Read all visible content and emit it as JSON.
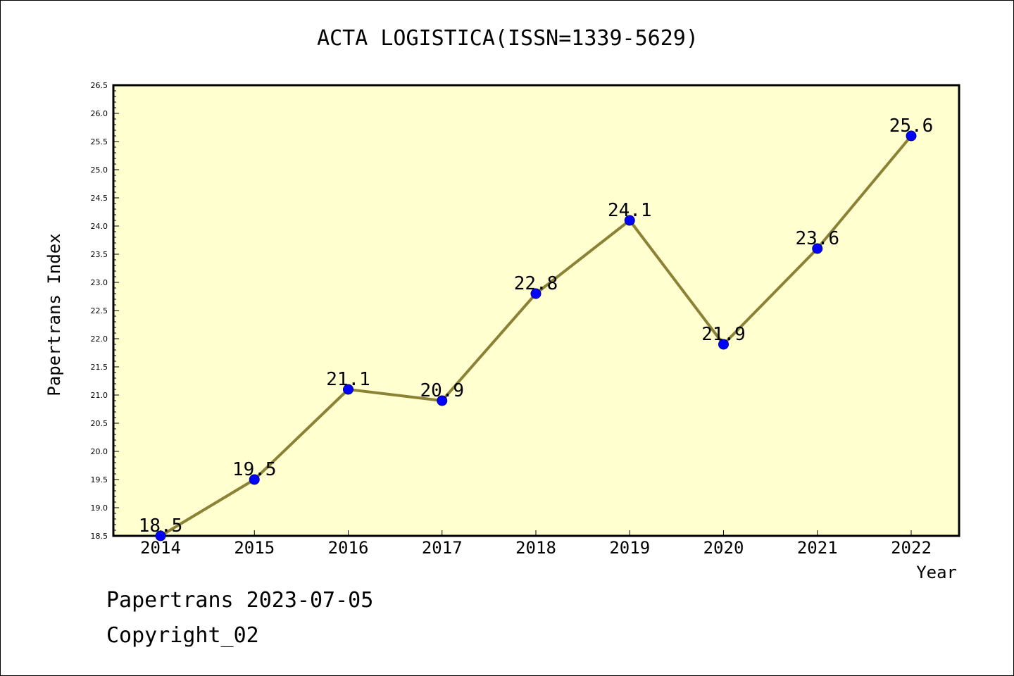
{
  "chart_data": {
    "type": "line",
    "title": "ACTA LOGISTICA(ISSN=1339-5629)",
    "xlabel": "Year",
    "ylabel": "Papertrans Index",
    "categories": [
      "2014",
      "2015",
      "2016",
      "2017",
      "2018",
      "2019",
      "2020",
      "2021",
      "2022"
    ],
    "values": [
      18.5,
      19.5,
      21.1,
      20.9,
      22.8,
      24.1,
      21.9,
      23.6,
      25.6
    ],
    "data_labels": [
      "18.5",
      "19.5",
      "21.1",
      "20.9",
      "22.8",
      "24.1",
      "21.9",
      "23.6",
      "25.6"
    ],
    "y_ticks": [
      "18.5",
      "19.0",
      "19.5",
      "20.0",
      "20.5",
      "21.0",
      "21.5",
      "22.0",
      "22.5",
      "23.0",
      "23.5",
      "24.0",
      "24.5",
      "25.0",
      "25.5",
      "26.0",
      "26.5"
    ],
    "ylim": [
      18.5,
      26.5
    ],
    "grid": false,
    "legend": "none"
  },
  "footer": {
    "line1": "Papertrans 2023-07-05",
    "line2": "Copyright_02"
  },
  "colors": {
    "plot_background": "#ffffd0",
    "line": "#8b8236",
    "marker_fill": "#0000ff",
    "marker_stroke": "#00008b",
    "axis": "#000000"
  }
}
